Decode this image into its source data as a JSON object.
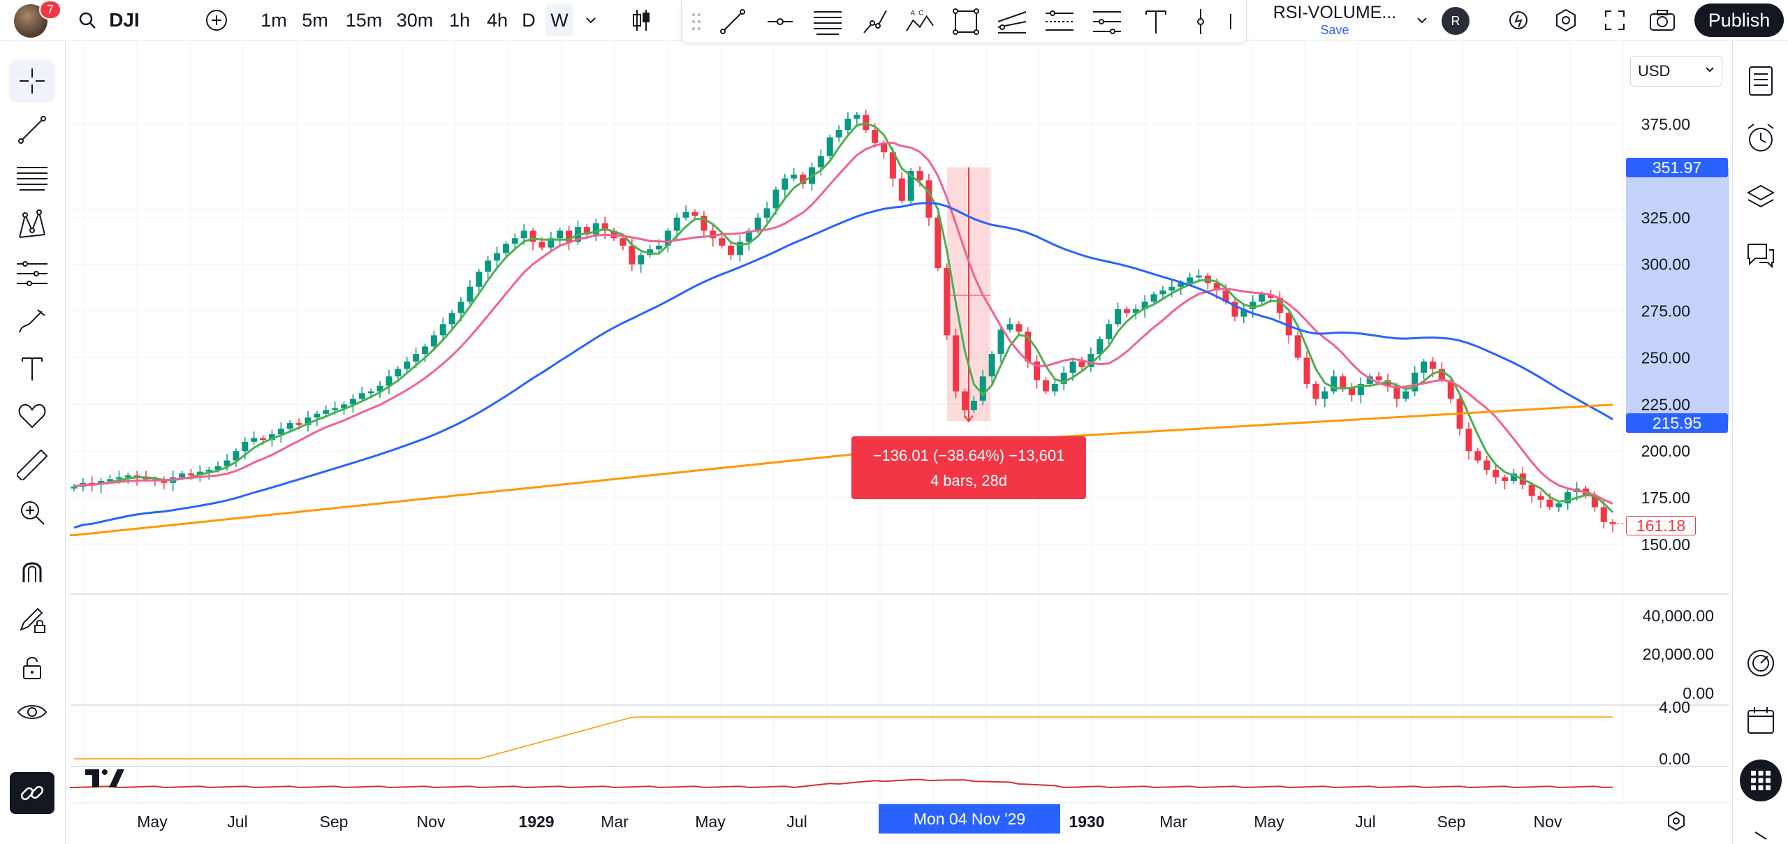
{
  "toolbar": {
    "notifications": "7",
    "symbol": "DJI",
    "intervals": [
      "1m",
      "5m",
      "15m",
      "30m",
      "1h",
      "4h",
      "D",
      "W"
    ],
    "active_interval": "W",
    "template_name": "RSI-VOLUME...",
    "template_save": "Save",
    "profile_initial": "R",
    "publish_label": "Publish"
  },
  "icons": {
    "top": [
      "search-icon",
      "add-symbol-icon",
      "chevron-down-icon",
      "candles-icon",
      "drag-handle-icon",
      "trend-line-icon",
      "horizontal-ray-icon",
      "fib-retracement-icon",
      "path-icon",
      "xabcd-icon",
      "rectangle-icon",
      "pitchfork-icon",
      "gann-icon",
      "parallel-channel-icon",
      "text-icon",
      "vertical-line-icon",
      "alert-icon",
      "settings-icon",
      "fullscreen-icon",
      "camera-icon"
    ],
    "left": [
      "crosshair-icon",
      "trend-line-icon",
      "fib-icon",
      "patterns-icon",
      "prediction-icon",
      "brush-icon",
      "text-icon",
      "heart-icon",
      "ruler-icon",
      "zoom-in-icon",
      "magnet-icon",
      "lock-drawing-icon",
      "lock-icon",
      "eye-icon",
      "link-icon"
    ],
    "right": [
      "watchlist-icon",
      "alerts-clock-icon",
      "layers-icon",
      "chat-icon",
      "compass-icon",
      "calendar-icon",
      "apps-grid-icon"
    ]
  },
  "currency": "USD",
  "tooltip": {
    "line1": "−136.01 (−38.64%) −13,601",
    "line2": "4 bars, 28d"
  },
  "chart_data": {
    "type": "candlestick",
    "symbol": "DJI",
    "interval": "W",
    "price_axis": {
      "ticks": [
        "375.00",
        "325.00",
        "300.00",
        "275.00",
        "250.00",
        "225.00",
        "200.00",
        "175.00",
        "150.00"
      ],
      "ylim": [
        140,
        390
      ],
      "highlighted": {
        "upper": "351.97",
        "lower": "215.95",
        "last": "161.18"
      }
    },
    "volume_axis": {
      "ticks": [
        "40,000.00",
        "20,000.00",
        "0.00"
      ]
    },
    "indicator_axis": {
      "ticks": [
        "4.00",
        "0.00"
      ]
    },
    "x_axis": {
      "ticks": [
        "May",
        "Jul",
        "Sep",
        "Nov",
        "1929",
        "Mar",
        "May",
        "Jul",
        "Mon",
        "1930",
        "Mar",
        "May",
        "Jul",
        "Sep",
        "Nov"
      ],
      "highlight": "Mon 04 Nov '29"
    },
    "close": [
      181,
      183,
      182,
      184,
      185,
      186,
      187,
      186,
      185,
      184,
      183,
      186,
      188,
      187,
      189,
      190,
      192,
      195,
      200,
      205,
      207,
      206,
      209,
      212,
      215,
      214,
      218,
      220,
      222,
      223,
      225,
      228,
      231,
      232,
      235,
      240,
      244,
      248,
      252,
      256,
      262,
      268,
      274,
      280,
      288,
      296,
      302,
      306,
      311,
      314,
      318,
      312,
      309,
      314,
      318,
      312,
      320,
      316,
      322,
      318,
      314,
      310,
      300,
      305,
      308,
      310,
      318,
      325,
      328,
      326,
      318,
      314,
      310,
      305,
      312,
      318,
      325,
      330,
      340,
      346,
      348,
      343,
      352,
      358,
      368,
      372,
      378,
      380,
      372,
      365,
      360,
      346,
      334,
      350,
      345,
      325,
      298,
      262,
      232,
      222,
      227,
      240,
      252,
      265,
      268,
      264,
      248,
      238,
      232,
      236,
      242,
      248,
      245,
      252,
      260,
      268,
      276,
      274,
      276,
      280,
      284,
      286,
      288,
      290,
      293,
      294,
      290,
      286,
      280,
      272,
      276,
      280,
      284,
      282,
      274,
      262,
      250,
      236,
      228,
      232,
      240,
      234,
      230,
      236,
      240,
      238,
      235,
      228,
      232,
      242,
      248,
      244,
      238,
      228,
      212,
      200,
      195,
      190,
      186,
      184,
      188,
      182,
      176,
      174,
      170,
      172,
      178,
      180,
      176,
      170,
      162,
      161
    ]
  }
}
